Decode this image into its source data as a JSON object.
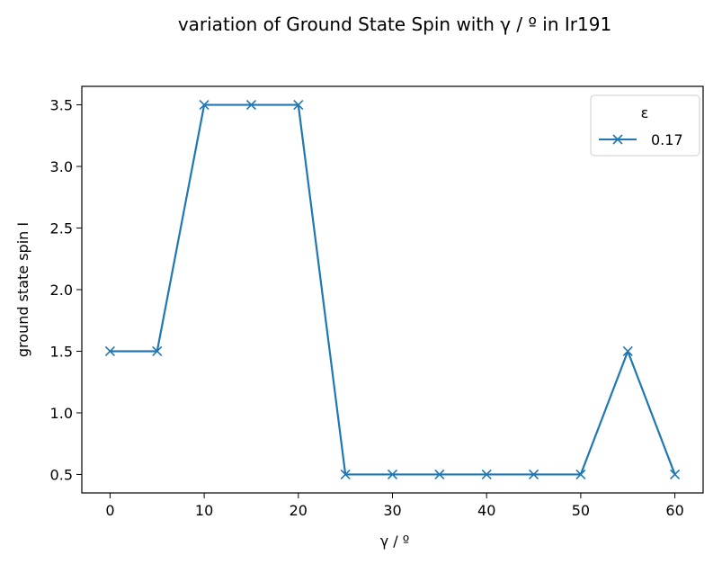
{
  "chart_data": {
    "type": "line",
    "title": "variation of Ground State Spin with γ / º in Ir191",
    "xlabel": "γ / º",
    "ylabel": "ground state spin I",
    "xlim": [
      -3,
      63
    ],
    "ylim": [
      0.35,
      3.65
    ],
    "xticks": [
      0,
      10,
      20,
      30,
      40,
      50,
      60
    ],
    "yticks": [
      0.5,
      1.0,
      1.5,
      2.0,
      2.5,
      3.0,
      3.5
    ],
    "xtick_labels": [
      "0",
      "10",
      "20",
      "30",
      "40",
      "50",
      "60"
    ],
    "ytick_labels": [
      "0.5",
      "1.0",
      "1.5",
      "2.0",
      "2.5",
      "3.0",
      "3.5"
    ],
    "legend": {
      "title": "ε",
      "position": "top-right"
    },
    "series": [
      {
        "name": "0.17",
        "color": "#1f77b4",
        "marker": "x",
        "x": [
          0,
          5,
          10,
          15,
          20,
          25,
          30,
          35,
          40,
          45,
          50,
          55,
          60
        ],
        "y": [
          1.5,
          1.5,
          3.5,
          3.5,
          3.5,
          0.5,
          0.5,
          0.5,
          0.5,
          0.5,
          0.5,
          1.5,
          0.5
        ]
      }
    ]
  }
}
